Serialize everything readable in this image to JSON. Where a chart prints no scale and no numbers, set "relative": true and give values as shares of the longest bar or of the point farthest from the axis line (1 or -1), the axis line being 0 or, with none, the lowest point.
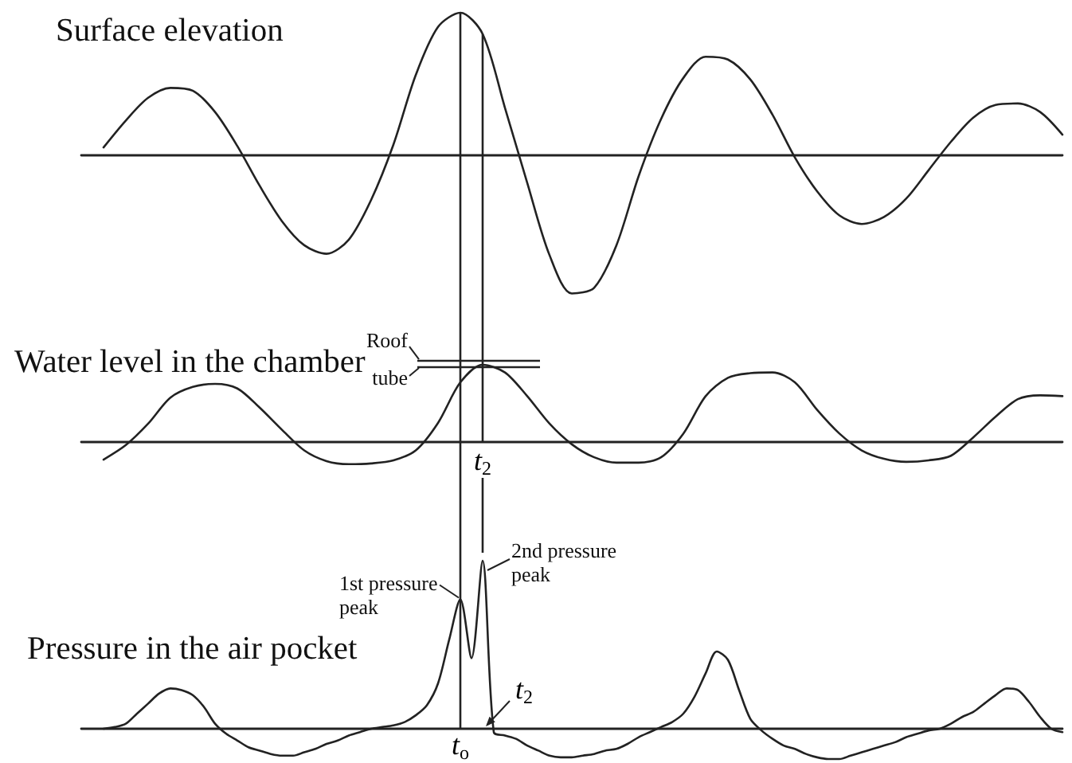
{
  "chart_data": [
    {
      "type": "line",
      "title": "Surface elevation",
      "relative": true,
      "tick_labels": false,
      "marker": "none",
      "color": "#222222",
      "categories": [
        null,
        null,
        null,
        null,
        null,
        null,
        null,
        null,
        null,
        null,
        null,
        null,
        null,
        null,
        null,
        null,
        null,
        null,
        null,
        null,
        null,
        null,
        null,
        null,
        null,
        null,
        null,
        null,
        null,
        null,
        null,
        null,
        null,
        null,
        null,
        null,
        null,
        null,
        null,
        null,
        null,
        null,
        null,
        null,
        null
      ],
      "values": [
        null,
        0.05,
        0.24,
        0.4,
        0.47,
        0.45,
        0.3,
        0.06,
        -0.22,
        -0.47,
        -0.64,
        -0.7,
        -0.6,
        -0.32,
        0.07,
        0.56,
        0.9,
        1.0,
        0.85,
        0.33,
        -0.2,
        -0.71,
        -0.98,
        -0.94,
        -0.64,
        -0.15,
        0.25,
        0.54,
        0.69,
        0.67,
        0.53,
        0.28,
        -0.02,
        -0.26,
        -0.43,
        -0.49,
        -0.44,
        -0.31,
        -0.11,
        0.09,
        0.26,
        0.35,
        0.36,
        0.3,
        0.14
      ]
    },
    {
      "type": "line",
      "title": "Water level in the chamber",
      "relative": true,
      "tick_labels": false,
      "marker": "none",
      "color": "#222222",
      "categories": [
        null,
        null,
        null,
        null,
        null,
        null,
        null,
        null,
        null,
        null,
        null,
        null,
        null,
        null,
        null,
        null,
        null,
        null,
        null,
        null,
        null,
        null,
        null,
        null,
        null,
        null,
        null,
        null,
        null,
        null,
        null,
        null,
        null,
        null,
        null,
        null,
        null,
        null,
        null,
        null,
        null,
        null,
        null,
        null,
        null
      ],
      "values": [
        null,
        -0.24,
        -0.05,
        0.23,
        0.57,
        0.71,
        0.75,
        0.69,
        0.44,
        0.15,
        -0.12,
        -0.26,
        -0.3,
        -0.29,
        -0.25,
        -0.12,
        0.24,
        0.77,
        1.0,
        0.9,
        0.59,
        0.23,
        -0.04,
        -0.21,
        -0.28,
        -0.28,
        -0.21,
        0.1,
        0.59,
        0.83,
        0.89,
        0.9,
        0.77,
        0.41,
        0.1,
        -0.12,
        -0.23,
        -0.27,
        -0.25,
        -0.19,
        0.05,
        0.32,
        0.55,
        0.6,
        0.59
      ],
      "ref_lines": [
        {
          "axis": "y",
          "value": 1.05,
          "label": "Roof"
        },
        {
          "axis": "y",
          "value": 0.98,
          "label": "tube"
        }
      ],
      "annotations": [
        "t$_{2}$"
      ]
    },
    {
      "type": "line",
      "title": "Pressure in the air pocket",
      "relative": true,
      "tick_labels": false,
      "marker": "none",
      "color": "#222222",
      "categories": [
        null,
        null,
        null,
        null,
        null,
        null,
        null,
        null,
        null,
        null,
        null,
        null,
        null,
        null,
        null,
        null,
        null,
        null,
        null,
        null,
        null,
        null,
        null,
        null,
        null,
        null,
        null,
        null,
        null,
        null,
        null,
        null,
        null,
        null,
        null,
        null,
        null,
        null,
        null,
        null,
        null,
        null,
        null,
        null,
        null,
        null,
        null,
        null,
        null,
        null,
        null,
        null,
        null,
        null,
        null,
        null,
        null,
        null,
        null,
        null,
        null,
        null,
        null,
        null,
        null,
        null,
        null,
        null,
        null,
        null,
        null,
        null,
        null,
        null,
        null,
        null,
        null,
        null,
        null,
        null,
        null,
        null,
        null,
        null,
        null,
        null,
        null,
        null,
        null
      ],
      "values": [
        null,
        null,
        0.0,
        0.01,
        0.03,
        0.09,
        0.15,
        0.21,
        0.24,
        0.23,
        0.2,
        0.13,
        0.03,
        -0.03,
        -0.07,
        -0.11,
        -0.13,
        -0.15,
        -0.16,
        -0.16,
        -0.14,
        -0.12,
        -0.09,
        -0.07,
        -0.04,
        -0.02,
        0.0,
        0.01,
        0.02,
        0.04,
        0.08,
        0.14,
        0.27,
        0.53,
        0.77,
        0.42,
        1.0,
        -0.02,
        -0.04,
        -0.06,
        -0.1,
        -0.13,
        -0.16,
        -0.17,
        -0.17,
        -0.16,
        -0.15,
        -0.13,
        -0.12,
        -0.09,
        -0.05,
        -0.02,
        0.01,
        0.04,
        0.09,
        0.19,
        0.33,
        0.46,
        0.41,
        0.23,
        0.06,
        -0.01,
        -0.06,
        -0.1,
        -0.12,
        -0.15,
        -0.17,
        -0.18,
        -0.18,
        -0.16,
        -0.14,
        -0.12,
        -0.1,
        -0.08,
        -0.05,
        -0.03,
        -0.01,
        0.0,
        0.03,
        0.07,
        0.1,
        0.15,
        0.2,
        0.24,
        0.23,
        0.16,
        0.07,
        0.0,
        -0.02
      ],
      "annotations": [
        "1st pressure peak",
        "2nd pressure peak",
        "t$_{o}$",
        "t$_{2}$"
      ]
    }
  ]
}
